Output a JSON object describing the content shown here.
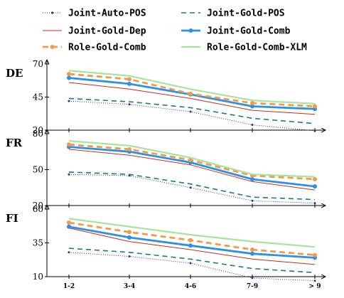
{
  "chart_data": {
    "type": "line",
    "categories": [
      "1-2",
      "3-4",
      "4-6",
      "7-9",
      "> 9"
    ],
    "series_styles": [
      {
        "name": "Joint-Auto-POS",
        "color": "#3a2c8e",
        "dash": "1,2",
        "width": 1.0,
        "marker": "dot"
      },
      {
        "name": "Joint-Gold-POS",
        "color": "#1d7a7a",
        "dash": "7,5",
        "width": 1.6,
        "marker": "none"
      },
      {
        "name": "Joint-Gold-Dep",
        "color": "#cc2a1e",
        "dash": "",
        "width": 1.0,
        "marker": "none"
      },
      {
        "name": "Joint-Gold-Comb",
        "color": "#2b90e8",
        "dash": "",
        "width": 2.8,
        "marker": "dot"
      },
      {
        "name": "Role-Gold-Comb",
        "color": "#f09a4a",
        "dash": "8,5",
        "width": 2.8,
        "marker": "dot"
      },
      {
        "name": "Role-Gold-Comb-XLM",
        "color": "#a6e39b",
        "dash": "",
        "width": 2.2,
        "marker": "none"
      }
    ],
    "panels": [
      {
        "label": "DE",
        "ylim": [
          20,
          70
        ],
        "yticks": [
          "20",
          "45",
          "70"
        ],
        "series": [
          {
            "name": "Joint-Auto-POS",
            "values": [
              42,
              39.5,
              34,
              24,
              19.5
            ]
          },
          {
            "name": "Joint-Gold-POS",
            "values": [
              44,
              41.5,
              37,
              29,
              25
            ]
          },
          {
            "name": "Joint-Gold-Dep",
            "values": [
              56,
              51,
              44,
              35,
              32
            ]
          },
          {
            "name": "Joint-Gold-Comb",
            "values": [
              59.5,
              55,
              47,
              38,
              36
            ]
          },
          {
            "name": "Role-Gold-Comb",
            "values": [
              62.5,
              58.5,
              47.5,
              40.5,
              38
            ]
          },
          {
            "name": "Role-Gold-Comb-XLM",
            "values": [
              65,
              61,
              51,
              42.5,
              40
            ]
          }
        ]
      },
      {
        "label": "FR",
        "ylim": [
          20,
          80
        ],
        "yticks": [
          "20",
          "50",
          "80"
        ],
        "series": [
          {
            "name": "Joint-Auto-POS",
            "values": [
              46,
              45,
              35,
              24,
              22
            ]
          },
          {
            "name": "Joint-Gold-POS",
            "values": [
              48,
              46,
              38,
              27,
              25
            ]
          },
          {
            "name": "Joint-Gold-Dep",
            "values": [
              67,
              62,
              54,
              40,
              33
            ]
          },
          {
            "name": "Joint-Gold-Comb",
            "values": [
              69,
              65,
              56,
              42,
              36
            ]
          },
          {
            "name": "Role-Gold-Comb",
            "values": [
              71,
              67,
              58,
              45,
              42
            ]
          },
          {
            "name": "Role-Gold-Comb-XLM",
            "values": [
              74,
              70,
              60,
              46,
              44
            ]
          }
        ]
      },
      {
        "label": "FI",
        "ylim": [
          10,
          60
        ],
        "yticks": [
          "10",
          "35",
          "60"
        ],
        "series": [
          {
            "name": "Joint-Auto-POS",
            "values": [
              28,
              25,
              20,
              9,
              7
            ]
          },
          {
            "name": "Joint-Gold-POS",
            "values": [
              31,
              28,
              23,
              16,
              13
            ]
          },
          {
            "name": "Joint-Gold-Dep",
            "values": [
              46,
              36,
              30,
              23,
              19
            ]
          },
          {
            "name": "Joint-Gold-Comb",
            "values": [
              47,
              39,
              33,
              27,
              24
            ]
          },
          {
            "name": "Role-Gold-Comb",
            "values": [
              50,
              43,
              37,
              30,
              26
            ]
          },
          {
            "name": "Role-Gold-Comb-XLM",
            "values": [
              53,
              47,
              41,
              36,
              32
            ]
          }
        ]
      }
    ],
    "legend_placement": "top",
    "grid": false
  }
}
